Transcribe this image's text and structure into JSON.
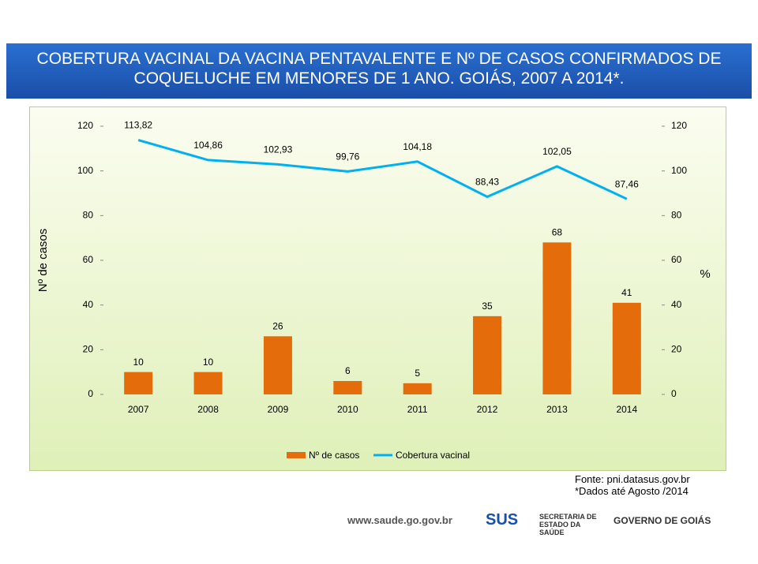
{
  "chart_data": {
    "type": "combo",
    "title": "COBERTURA VACINAL DA VACINA PENTAVALENTE E Nº DE CASOS CONFIRMADOS DE COQUELUCHE EM MENORES DE 1 ANO. GOIÁS, 2007 A 2014*.",
    "categories": [
      "2007",
      "2008",
      "2009",
      "2010",
      "2011",
      "2012",
      "2013",
      "2014"
    ],
    "series": [
      {
        "name": "Nº de casos",
        "type": "bar",
        "color": "#e46c0a",
        "values": [
          10,
          10,
          26,
          6,
          5,
          35,
          68,
          41
        ]
      },
      {
        "name": "Cobertura vacinal",
        "type": "line",
        "axis": "y2",
        "color": "#00b0f0",
        "values": [
          113.82,
          104.86,
          102.93,
          99.76,
          104.18,
          88.43,
          102.05,
          87.46
        ],
        "value_labels": [
          "113,82",
          "104,86",
          "102,93",
          "99,76",
          "104,18",
          "88,43",
          "102,05",
          "87,46"
        ]
      }
    ],
    "ylabel": "Nº de casos",
    "y2label": "%",
    "ylim": [
      0,
      120
    ],
    "yticks": [
      0,
      20,
      40,
      60,
      80,
      100,
      120
    ],
    "y2lim": [
      0,
      120
    ],
    "y2ticks": [
      0,
      20,
      40,
      60,
      80,
      100,
      120
    ]
  },
  "footer": {
    "source": "Fonte: pni.datasus.gov.br",
    "note": "*Dados até Agosto /2014",
    "site": "www.saude.go.gov.br",
    "sus": "SUS",
    "secretaria": "SECRETARIA DE ESTADO DA SAÚDE",
    "governo": "GOVERNO DE GOIÁS"
  }
}
